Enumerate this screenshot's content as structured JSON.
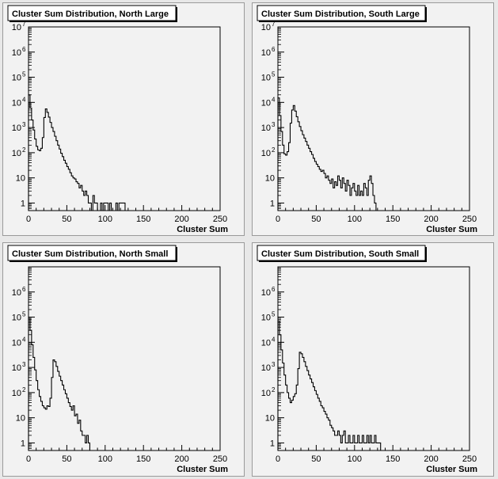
{
  "chart_data": [
    {
      "type": "line",
      "title": "Cluster Sum Distribution, North Large",
      "xlabel": "Cluster Sum",
      "ylabel": "",
      "xlim": [
        0,
        250
      ],
      "ylim": [
        0.5,
        10000000
      ],
      "yscale": "log",
      "grid": false,
      "x_ticks": [
        0,
        50,
        100,
        150,
        200,
        250
      ],
      "y_ticks": [
        {
          "value": 1,
          "label": "1"
        },
        {
          "value": 10,
          "label": "10"
        },
        {
          "value": 100,
          "label": "10",
          "exp": "2"
        },
        {
          "value": 1000,
          "label": "10",
          "exp": "3"
        },
        {
          "value": 10000,
          "label": "10",
          "exp": "4"
        },
        {
          "value": 100000,
          "label": "10",
          "exp": "5"
        },
        {
          "value": 1000000,
          "label": "10",
          "exp": "6"
        },
        {
          "value": 10000000,
          "label": "10",
          "exp": "7"
        }
      ],
      "series": [
        {
          "x": [
            0,
            2,
            4,
            6,
            8,
            10,
            12,
            14,
            16,
            18,
            20,
            22,
            24,
            26,
            28,
            30,
            32,
            34,
            36,
            38,
            40,
            42,
            44,
            46,
            48,
            50,
            52,
            54,
            56,
            58,
            60,
            62,
            64,
            66,
            68,
            70,
            72,
            74,
            76,
            78,
            80,
            82,
            84,
            86,
            88,
            90,
            92,
            94,
            96,
            98,
            100,
            102,
            104,
            106,
            108,
            110,
            112,
            114,
            116,
            118,
            120,
            122,
            124,
            126,
            128
          ],
          "y": [
            20000,
            6000,
            2000,
            800,
            350,
            180,
            130,
            120,
            150,
            400,
            2500,
            5500,
            4000,
            2600,
            1600,
            1000,
            700,
            450,
            300,
            200,
            140,
            95,
            70,
            50,
            38,
            28,
            22,
            16,
            12,
            10,
            9,
            7,
            6,
            4,
            5,
            3,
            2,
            3,
            2,
            1,
            1,
            0,
            2,
            1,
            1,
            0,
            0,
            1,
            0,
            1,
            1,
            1,
            0,
            1,
            0,
            0,
            0,
            1,
            0,
            1,
            1,
            1,
            1,
            0,
            0
          ]
        }
      ]
    },
    {
      "type": "line",
      "title": "Cluster Sum Distribution, South Large",
      "xlabel": "Cluster Sum",
      "ylabel": "",
      "xlim": [
        0,
        250
      ],
      "ylim": [
        0.5,
        10000000
      ],
      "yscale": "log",
      "grid": false,
      "x_ticks": [
        0,
        50,
        100,
        150,
        200,
        250
      ],
      "y_ticks": [
        {
          "value": 1,
          "label": "1"
        },
        {
          "value": 10,
          "label": "10"
        },
        {
          "value": 100,
          "label": "10",
          "exp": "2"
        },
        {
          "value": 1000,
          "label": "10",
          "exp": "3"
        },
        {
          "value": 10000,
          "label": "10",
          "exp": "4"
        },
        {
          "value": 100000,
          "label": "10",
          "exp": "5"
        },
        {
          "value": 1000000,
          "label": "10",
          "exp": "6"
        },
        {
          "value": 10000000,
          "label": "10",
          "exp": "7"
        }
      ],
      "series": [
        {
          "x": [
            0,
            2,
            4,
            6,
            8,
            10,
            12,
            14,
            16,
            18,
            20,
            22,
            24,
            26,
            28,
            30,
            32,
            34,
            36,
            38,
            40,
            42,
            44,
            46,
            48,
            50,
            52,
            54,
            56,
            58,
            60,
            62,
            64,
            66,
            68,
            70,
            72,
            74,
            76,
            78,
            80,
            82,
            84,
            86,
            88,
            90,
            92,
            94,
            96,
            98,
            100,
            102,
            104,
            106,
            108,
            110,
            112,
            114,
            116,
            118,
            120,
            122,
            124,
            126,
            128,
            130
          ],
          "y": [
            15000,
            3000,
            700,
            200,
            90,
            80,
            110,
            250,
            1500,
            5000,
            7500,
            4500,
            2700,
            1700,
            1100,
            750,
            520,
            380,
            280,
            200,
            150,
            110,
            85,
            60,
            45,
            35,
            28,
            22,
            18,
            20,
            15,
            10,
            12,
            8,
            6,
            9,
            4,
            7,
            5,
            12,
            8,
            4,
            10,
            6,
            3,
            8,
            5,
            2,
            4,
            6,
            3,
            2,
            5,
            2,
            3,
            2,
            6,
            4,
            2,
            8,
            12,
            6,
            2,
            1,
            0,
            0
          ]
        }
      ]
    },
    {
      "type": "line",
      "title": "Cluster Sum Distribution, North Small",
      "xlabel": "Cluster Sum",
      "ylabel": "",
      "xlim": [
        0,
        250
      ],
      "ylim": [
        0.5,
        10000000
      ],
      "yscale": "log",
      "grid": false,
      "x_ticks": [
        0,
        50,
        100,
        150,
        200,
        250
      ],
      "y_ticks": [
        {
          "value": 1,
          "label": "1"
        },
        {
          "value": 10,
          "label": "10"
        },
        {
          "value": 100,
          "label": "10",
          "exp": "2"
        },
        {
          "value": 1000,
          "label": "10",
          "exp": "3"
        },
        {
          "value": 10000,
          "label": "10",
          "exp": "4"
        },
        {
          "value": 100000,
          "label": "10",
          "exp": "5"
        },
        {
          "value": 1000000,
          "label": "10",
          "exp": "6"
        }
      ],
      "series": [
        {
          "x": [
            0,
            2,
            4,
            6,
            8,
            10,
            12,
            14,
            16,
            18,
            20,
            22,
            24,
            26,
            28,
            30,
            32,
            34,
            36,
            38,
            40,
            42,
            44,
            46,
            48,
            50,
            52,
            54,
            56,
            58,
            60,
            62,
            64,
            66,
            68,
            70,
            72,
            74,
            76,
            78,
            80
          ],
          "y": [
            90000,
            30000,
            8000,
            2500,
            800,
            300,
            130,
            70,
            45,
            30,
            25,
            22,
            30,
            28,
            60,
            400,
            2000,
            1700,
            1100,
            700,
            450,
            300,
            200,
            130,
            90,
            60,
            40,
            28,
            20,
            30,
            12,
            14,
            6,
            8,
            3,
            2,
            2,
            1,
            2,
            1,
            0
          ]
        }
      ]
    },
    {
      "type": "line",
      "title": "Cluster Sum Distribution, South Small",
      "xlabel": "Cluster Sum",
      "ylabel": "",
      "xlim": [
        0,
        250
      ],
      "ylim": [
        0.5,
        10000000
      ],
      "yscale": "log",
      "grid": false,
      "x_ticks": [
        0,
        50,
        100,
        150,
        200,
        250
      ],
      "y_ticks": [
        {
          "value": 1,
          "label": "1"
        },
        {
          "value": 10,
          "label": "10"
        },
        {
          "value": 100,
          "label": "10",
          "exp": "2"
        },
        {
          "value": 1000,
          "label": "10",
          "exp": "3"
        },
        {
          "value": 10000,
          "label": "10",
          "exp": "4"
        },
        {
          "value": 100000,
          "label": "10",
          "exp": "5"
        },
        {
          "value": 1000000,
          "label": "10",
          "exp": "6"
        }
      ],
      "series": [
        {
          "x": [
            0,
            2,
            4,
            6,
            8,
            10,
            12,
            14,
            16,
            18,
            20,
            22,
            24,
            26,
            28,
            30,
            32,
            34,
            36,
            38,
            40,
            42,
            44,
            46,
            48,
            50,
            52,
            54,
            56,
            58,
            60,
            62,
            64,
            66,
            68,
            70,
            72,
            74,
            76,
            78,
            80,
            82,
            84,
            86,
            88,
            90,
            92,
            94,
            96,
            98,
            100,
            102,
            104,
            106,
            108,
            110,
            112,
            114,
            116,
            118,
            120,
            122,
            124,
            126,
            128,
            130,
            132,
            134
          ],
          "y": [
            70000,
            20000,
            5000,
            1500,
            500,
            200,
            100,
            60,
            40,
            50,
            70,
            90,
            200,
            900,
            4000,
            3500,
            2500,
            1700,
            1100,
            750,
            500,
            350,
            250,
            170,
            120,
            85,
            60,
            45,
            30,
            25,
            18,
            14,
            10,
            8,
            5,
            4,
            3,
            2,
            2,
            3,
            2,
            1,
            2,
            3,
            1,
            1,
            2,
            1,
            1,
            2,
            1,
            1,
            2,
            1,
            1,
            2,
            1,
            1,
            2,
            1,
            2,
            1,
            1,
            2,
            1,
            1,
            1,
            0
          ]
        }
      ]
    }
  ]
}
